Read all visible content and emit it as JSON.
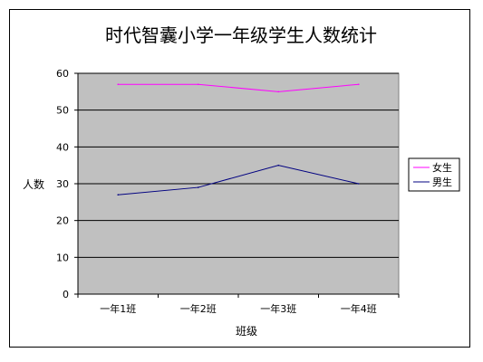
{
  "chart_data": {
    "type": "line",
    "title": "时代智囊小学一年级学生人数统计",
    "xlabel": "班级",
    "ylabel": "人数",
    "categories": [
      "一年1班",
      "一年2班",
      "一年3班",
      "一年4班"
    ],
    "ylim": [
      0,
      60
    ],
    "yticks": [
      0,
      10,
      20,
      30,
      40,
      50,
      60
    ],
    "grid": true,
    "legend_position": "right",
    "series": [
      {
        "name": "女生",
        "values": [
          57,
          57,
          55,
          57
        ],
        "color": "#ff00ff"
      },
      {
        "name": "男生",
        "values": [
          27,
          29,
          35,
          30
        ],
        "color": "#000080"
      }
    ],
    "plot_background": "#c0c0c0"
  }
}
